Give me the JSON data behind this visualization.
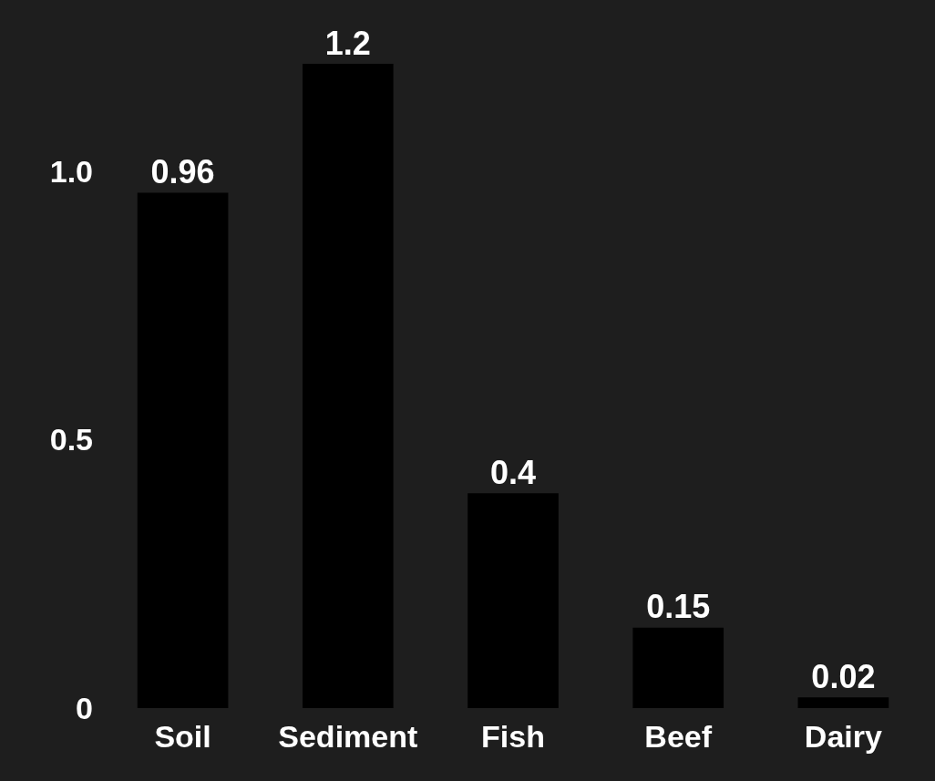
{
  "chart_data": {
    "type": "bar",
    "categories": [
      "Soil",
      "Sediment",
      "Fish",
      "Beef",
      "Dairy"
    ],
    "values": [
      0.96,
      1.2,
      0.4,
      0.15,
      0.02
    ],
    "color": "#000000",
    "ylim": [
      0,
      1.2
    ],
    "yticks": [
      0,
      0.5,
      {
        "value": 1,
        "label": "1.0"
      }
    ],
    "data_labels": true,
    "grid": false
  }
}
